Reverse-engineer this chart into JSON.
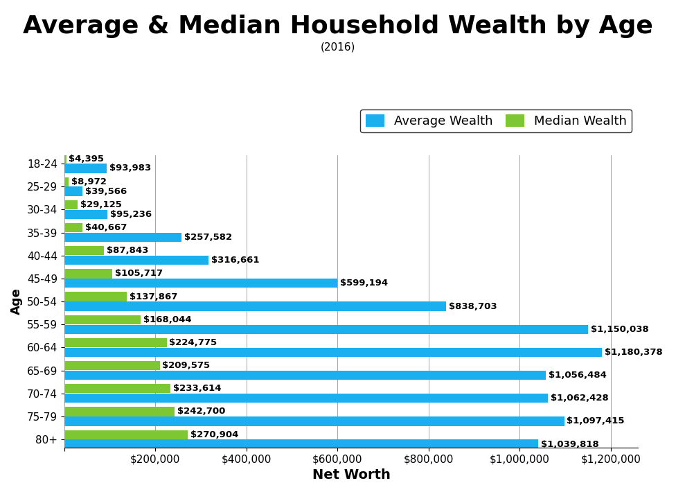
{
  "title": "Average & Median Household Wealth by Age",
  "subtitle": "(2016)",
  "xlabel": "Net Worth",
  "ylabel": "Age",
  "categories": [
    "18-24",
    "25-29",
    "30-34",
    "35-39",
    "40-44",
    "45-49",
    "50-54",
    "55-59",
    "60-64",
    "65-69",
    "70-74",
    "75-79",
    "80+"
  ],
  "average_wealth": [
    93983,
    39566,
    95236,
    257582,
    316661,
    599194,
    838703,
    1150038,
    1180378,
    1056484,
    1062428,
    1097415,
    1039818
  ],
  "median_wealth": [
    4395,
    8972,
    29125,
    40667,
    87843,
    105717,
    137867,
    168044,
    224775,
    209575,
    233614,
    242700,
    270904
  ],
  "avg_color": "#1ab0f0",
  "med_color": "#7dc832",
  "background_color": "#ffffff",
  "xlim": [
    0,
    1260000
  ],
  "title_fontsize": 26,
  "subtitle_fontsize": 11,
  "xlabel_fontsize": 14,
  "ylabel_fontsize": 13,
  "tick_fontsize": 11,
  "legend_fontsize": 13,
  "bar_label_fontsize": 9.5,
  "bar_height": 0.4,
  "bar_gap": 0.02
}
